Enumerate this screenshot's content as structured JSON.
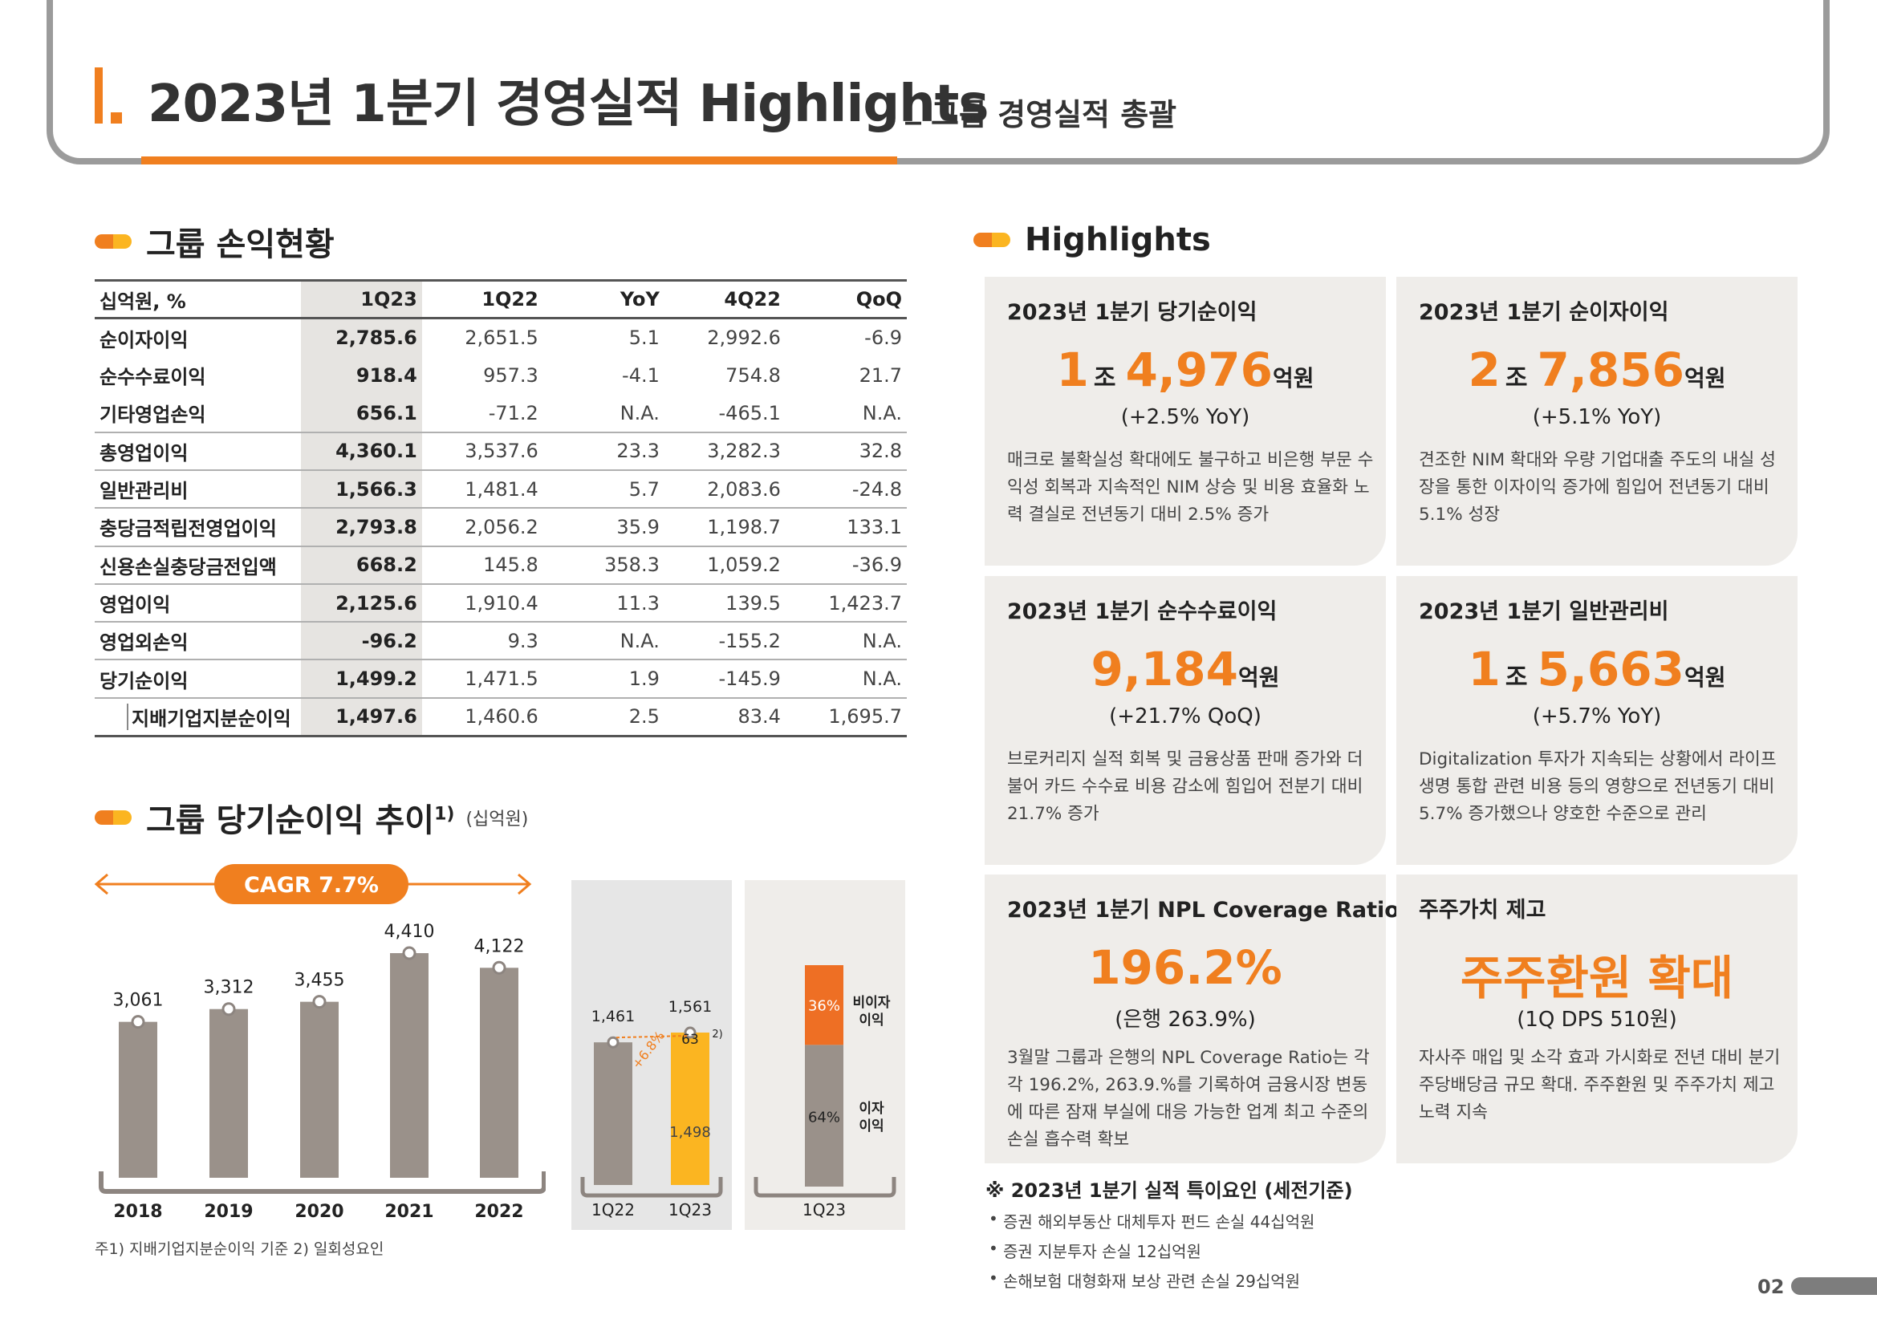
{
  "header": {
    "roman": "I.",
    "title": "2023년 1분기 경영실적 Highlights",
    "separator": "_",
    "subtitle": "그룹 경영실적 총괄"
  },
  "pl_section": {
    "title": "그룹 손익현황",
    "columns": [
      "십억원, %",
      "1Q23",
      "1Q22",
      "YoY",
      "4Q22",
      "QoQ"
    ],
    "rows": [
      {
        "label": "순이자이익",
        "values": [
          "2,785.6",
          "2,651.5",
          "5.1",
          "2,992.6",
          "-6.9"
        ]
      },
      {
        "label": "순수수료이익",
        "values": [
          "918.4",
          "957.3",
          "-4.1",
          "754.8",
          "21.7"
        ]
      },
      {
        "label": "기타영업손익",
        "values": [
          "656.1",
          "-71.2",
          "N.A.",
          "-465.1",
          "N.A."
        ]
      },
      {
        "label": "총영업이익",
        "values": [
          "4,360.1",
          "3,537.6",
          "23.3",
          "3,282.3",
          "32.8"
        ]
      },
      {
        "label": "일반관리비",
        "values": [
          "1,566.3",
          "1,481.4",
          "5.7",
          "2,083.6",
          "-24.8"
        ]
      },
      {
        "label": "충당금적립전영업이익",
        "values": [
          "2,793.8",
          "2,056.2",
          "35.9",
          "1,198.7",
          "133.1"
        ]
      },
      {
        "label": "신용손실충당금전입액",
        "values": [
          "668.2",
          "145.8",
          "358.3",
          "1,059.2",
          "-36.9"
        ]
      },
      {
        "label": "영업이익",
        "values": [
          "2,125.6",
          "1,910.4",
          "11.3",
          "139.5",
          "1,423.7"
        ]
      },
      {
        "label": "영업외손익",
        "values": [
          "-96.2",
          "9.3",
          "N.A.",
          "-155.2",
          "N.A."
        ]
      },
      {
        "label": "당기순이익",
        "values": [
          "1,499.2",
          "1,471.5",
          "1.9",
          "-145.9",
          "N.A."
        ]
      },
      {
        "label": "지배기업지분순이익",
        "values": [
          "1,497.6",
          "1,460.6",
          "2.5",
          "83.4",
          "1,695.7"
        ]
      }
    ]
  },
  "trend_section": {
    "title": "그룹 당기순이익 추이",
    "sup": "1)",
    "unit": "(십억원)"
  },
  "chart_data": [
    {
      "type": "bar",
      "categories": [
        "2018",
        "2019",
        "2020",
        "2021",
        "2022"
      ],
      "values": [
        3061,
        3312,
        3455,
        4410,
        4122
      ],
      "value_labels": [
        "3,061",
        "3,312",
        "3,455",
        "4,410",
        "4,122"
      ],
      "annotation": "CAGR 7.7%",
      "color": "#9a918a",
      "ylim": [
        0,
        5000
      ]
    },
    {
      "type": "bar",
      "categories": [
        "1Q22",
        "1Q23"
      ],
      "values": [
        1461,
        1561
      ],
      "value_labels": [
        "1,461",
        "1,561"
      ],
      "stack_1q23": {
        "base": 1498,
        "base_label": "1,498",
        "one_off": 63,
        "one_off_label": "63",
        "one_off_note": "2)"
      },
      "growth_label": "+6.8%",
      "colors": {
        "1Q22": "#9a918a",
        "1Q23": "#fbb521"
      },
      "ylim": [
        0,
        2000
      ]
    },
    {
      "type": "bar",
      "stacked": true,
      "categories": [
        "1Q23"
      ],
      "series": [
        {
          "name": "이자이익",
          "values": [
            64
          ],
          "label": "64%",
          "color": "#9a918a"
        },
        {
          "name": "비이자이익",
          "values": [
            36
          ],
          "label": "36%",
          "color": "#ee6f24"
        }
      ],
      "legend_labels": {
        "nonint_1": "비이자",
        "nonint_2": "이익",
        "int_1": "이자",
        "int_2": "이익"
      }
    }
  ],
  "highlights_section": {
    "title": "Highlights"
  },
  "cards": [
    {
      "title": "2023년 1분기 당기순이익",
      "v1": "1",
      "v1u": "조",
      "v2": "4,976",
      "v2u": "억원",
      "sub": "(+2.5% YoY)",
      "desc": "매크로 불확실성 확대에도 불구하고 비은행 부문 수익성 회복과 지속적인 NIM 상승 및 비용 효율화 노력 결실로 전년동기 대비 2.5% 증가"
    },
    {
      "title": "2023년 1분기 순이자이익",
      "v1": "2",
      "v1u": "조",
      "v2": "7,856",
      "v2u": "억원",
      "sub": "(+5.1% YoY)",
      "desc": "견조한 NIM 확대와 우량 기업대출 주도의 내실 성장을 통한 이자이익 증가에 힘입어 전년동기 대비 5.1% 성장"
    },
    {
      "title": "2023년 1분기 순수수료이익",
      "v2": "9,184",
      "v2u": "억원",
      "sub": "(+21.7% QoQ)",
      "desc": "브로커리지 실적 회복 및 금융상품 판매 증가와 더불어 카드 수수료 비용 감소에 힘입어 전분기 대비 21.7% 증가"
    },
    {
      "title": "2023년 1분기 일반관리비",
      "v1": "1",
      "v1u": "조",
      "v2": "5,663",
      "v2u": "억원",
      "sub": "(+5.7% YoY)",
      "desc": "Digitalization 투자가 지속되는 상황에서 라이프 생명 통합 관련 비용 등의 영향으로 전년동기 대비 5.7% 증가했으나 양호한 수준으로 관리"
    },
    {
      "title": "2023년 1분기 NPL Coverage Ratio",
      "v2": "196.2%",
      "sub": "(은행 263.9%)",
      "desc": "3월말 그룹과 은행의 NPL Coverage Ratio는 각각 196.2%, 263.9.%를 기록하여 금융시장 변동에 따른 잠재 부실에 대응 가능한 업계 최고 수준의 손실 흡수력 확보"
    },
    {
      "title": "주주가치 제고",
      "v2": "주주환원 확대",
      "sub": "(1Q DPS 510원)",
      "desc": "자사주 매입 및 소각 효과 가시화로 전년 대비 분기 주당배당금 규모 확대. 주주환원 및 주주가치 제고 노력 지속"
    }
  ],
  "notes": {
    "title": "※ 2023년 1분기 실적 특이요인 (세전기준)",
    "items": [
      "증권 해외부동산 대체투자 펀드 손실 44십억원",
      "증권 지분투자 손실 12십억원",
      "손해보험 대형화재 보상 관련 손실 29십억원"
    ]
  },
  "footnote": "주1) 지배기업지분순이익 기준   2) 일회성요인",
  "page_number": "02"
}
